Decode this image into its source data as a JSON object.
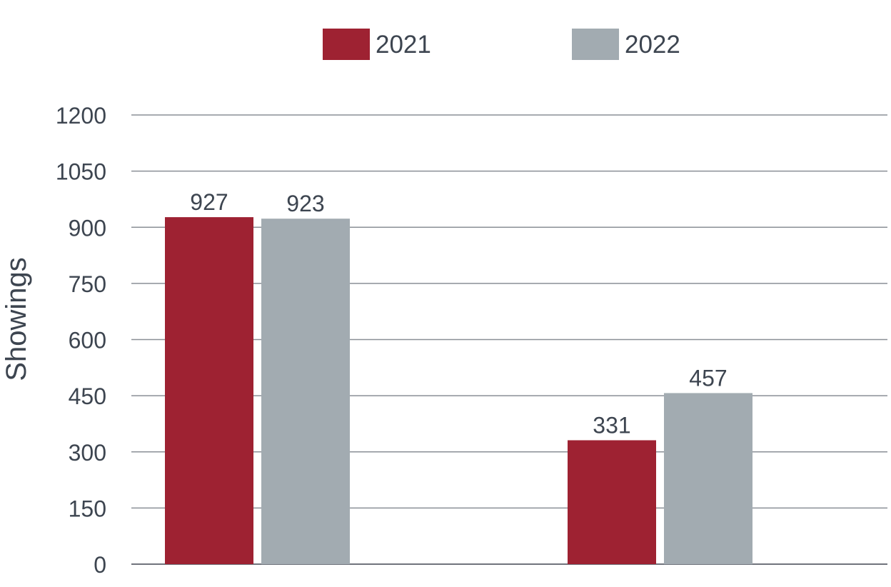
{
  "chart_data": {
    "type": "bar",
    "ylabel": "Showings",
    "ylim": [
      0,
      1200
    ],
    "yticks": [
      0,
      150,
      300,
      450,
      600,
      750,
      900,
      1050,
      1200
    ],
    "grid": true,
    "legend_position": "top-center",
    "categories": [
      "",
      ""
    ],
    "series": [
      {
        "name": "2021",
        "color": "#9e2232",
        "values": [
          927,
          331
        ]
      },
      {
        "name": "2022",
        "color": "#a2abb1",
        "values": [
          923,
          457
        ]
      }
    ]
  }
}
